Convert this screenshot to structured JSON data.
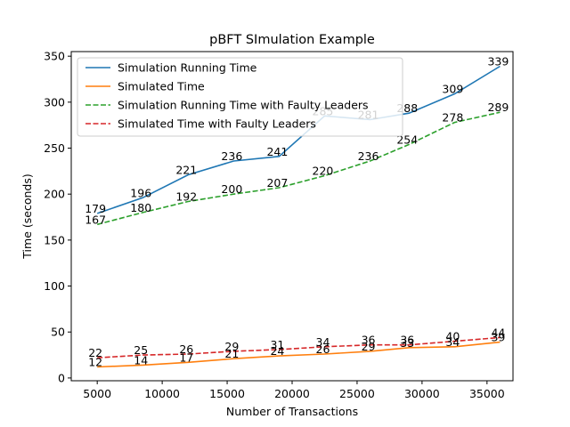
{
  "chart_data": {
    "type": "line",
    "title": "pBFT SImulation Example",
    "xlabel": "Number of Transactions",
    "ylabel": "Time (seconds)",
    "xlim": [
      3000,
      37000
    ],
    "ylim": [
      -3,
      355
    ],
    "xticks": [
      5000,
      10000,
      15000,
      20000,
      25000,
      30000,
      35000
    ],
    "yticks": [
      0,
      50,
      100,
      150,
      200,
      250,
      300,
      350
    ],
    "grid": false,
    "legend_position": "top-left",
    "x": [
      5000,
      8500,
      12000,
      15500,
      19000,
      22500,
      26000,
      29000,
      32500,
      36000
    ],
    "series": [
      {
        "name": "Simulation Running Time",
        "color": "#1f77b4",
        "style": "solid",
        "values": [
          179,
          196,
          221,
          236,
          241,
          285,
          281,
          288,
          309,
          339
        ],
        "labels": [
          "179",
          "196",
          "221",
          "236",
          "241",
          "285",
          "281",
          "288",
          "309",
          "339"
        ]
      },
      {
        "name": "Simulated Time",
        "color": "#ff7f0e",
        "style": "solid",
        "values": [
          12,
          14,
          17,
          21,
          24,
          26,
          29,
          33,
          34,
          39
        ],
        "labels": [
          "12",
          "14",
          "17",
          "21",
          "24",
          "26",
          "29",
          "33",
          "34",
          "39"
        ]
      },
      {
        "name": "Simulation Running Time with Faulty Leaders",
        "color": "#2ca02c",
        "style": "dashed",
        "values": [
          167,
          180,
          192,
          200,
          207,
          220,
          236,
          254,
          278,
          289
        ],
        "labels": [
          "167",
          "180",
          "192",
          "200",
          "207",
          "220",
          "236",
          "254",
          "278",
          "289"
        ]
      },
      {
        "name": "Simulated Time with Faulty Leaders",
        "color": "#d62728",
        "style": "dashed",
        "values": [
          22,
          25,
          26,
          29,
          31,
          34,
          36,
          36,
          40,
          44
        ],
        "labels": [
          "22",
          "25",
          "26",
          "29",
          "31",
          "34",
          "36",
          "36",
          "40",
          "44"
        ]
      }
    ]
  }
}
